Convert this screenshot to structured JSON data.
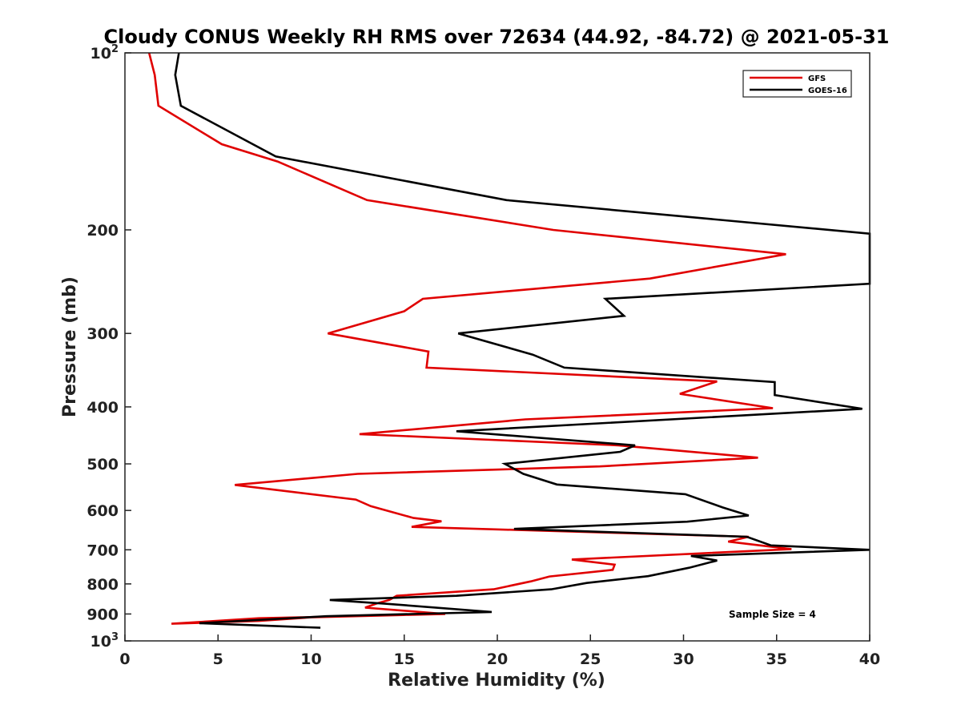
{
  "chart_data": {
    "type": "line",
    "title": "Cloudy CONUS Weekly RH RMS over 72634 (44.92, -84.72) @ 2021-05-31",
    "xlabel": "Relative Humidity (%)",
    "ylabel": "Pressure (mb)",
    "xlim": [
      0,
      40
    ],
    "ylim": [
      100,
      1000
    ],
    "y_scale": "log",
    "y_reversed": true,
    "grid": false,
    "legend_position": "top-right",
    "x_ticks": [
      "0",
      "5",
      "10",
      "15",
      "20",
      "25",
      "30",
      "35",
      "40"
    ],
    "y_ticks": [
      {
        "value": 100,
        "base": "10",
        "exp": "2",
        "label": ""
      },
      {
        "value": 200,
        "label": "200"
      },
      {
        "value": 300,
        "label": "300"
      },
      {
        "value": 400,
        "label": "400"
      },
      {
        "value": 500,
        "label": "500"
      },
      {
        "value": 600,
        "label": "600"
      },
      {
        "value": 700,
        "label": "700"
      },
      {
        "value": 800,
        "label": "800"
      },
      {
        "value": 900,
        "label": "900"
      },
      {
        "value": 1000,
        "base": "10",
        "exp": "3",
        "label": ""
      }
    ],
    "annotation": "Sample Size = 4",
    "series": [
      {
        "name": "GFS",
        "color": "#e00000",
        "points": [
          [
            1.3,
            100
          ],
          [
            1.6,
            109
          ],
          [
            1.8,
            123
          ],
          [
            5.2,
            143
          ],
          [
            8.2,
            153
          ],
          [
            13,
            178
          ],
          [
            23,
            200
          ],
          [
            35.5,
            220
          ],
          [
            28.2,
            242
          ],
          [
            16,
            262
          ],
          [
            15.0,
            275
          ],
          [
            10.9,
            300
          ],
          [
            16.3,
            322
          ],
          [
            16.2,
            343
          ],
          [
            31.8,
            362
          ],
          [
            29.8,
            380
          ],
          [
            34.8,
            402
          ],
          [
            21.5,
            420
          ],
          [
            12.6,
            445
          ],
          [
            26.5,
            465
          ],
          [
            34,
            488
          ],
          [
            25.5,
            505
          ],
          [
            12.5,
            520
          ],
          [
            5.9,
            543
          ],
          [
            12.4,
            575
          ],
          [
            13.2,
            590
          ],
          [
            15.5,
            618
          ],
          [
            17.0,
            626
          ],
          [
            15.4,
            640
          ],
          [
            33.5,
            665
          ],
          [
            32.4,
            678
          ],
          [
            35.8,
            698
          ],
          [
            24,
            727
          ],
          [
            26.3,
            742
          ],
          [
            26.2,
            757
          ],
          [
            22.8,
            777
          ],
          [
            21.8,
            792
          ],
          [
            19.8,
            817
          ],
          [
            14.6,
            838
          ],
          [
            14.2,
            852
          ],
          [
            13.6,
            862
          ],
          [
            12.9,
            878
          ],
          [
            17.2,
            900
          ],
          [
            7.2,
            915
          ],
          [
            2.5,
            935
          ],
          [
            7.2,
            925
          ],
          [
            10,
            912
          ],
          [
            17.2,
            900
          ]
        ]
      },
      {
        "name": "GOES-16",
        "color": "#000000",
        "points": [
          [
            2.9,
            100
          ],
          [
            2.7,
            109
          ],
          [
            3.0,
            123
          ],
          [
            8.1,
            150
          ],
          [
            20.5,
            178
          ],
          [
            40,
            203
          ],
          [
            40,
            247
          ],
          [
            25.8,
            262
          ],
          [
            26.8,
            280
          ],
          [
            17.9,
            300
          ],
          [
            21.9,
            326
          ],
          [
            23.6,
            343
          ],
          [
            34.9,
            363
          ],
          [
            34.9,
            382
          ],
          [
            39.6,
            403
          ],
          [
            17.8,
            440
          ],
          [
            27.4,
            465
          ],
          [
            26.6,
            477
          ],
          [
            20.4,
            500
          ],
          [
            21.4,
            520
          ],
          [
            23.2,
            542
          ],
          [
            30.1,
            563
          ],
          [
            32.1,
            593
          ],
          [
            33.5,
            612
          ],
          [
            30.2,
            627
          ],
          [
            20.9,
            645
          ],
          [
            33.4,
            665
          ],
          [
            34.7,
            688
          ],
          [
            40,
            700
          ],
          [
            30.4,
            717
          ],
          [
            31.8,
            730
          ],
          [
            30.3,
            751
          ],
          [
            28.1,
            776
          ],
          [
            24.8,
            797
          ],
          [
            22.9,
            817
          ],
          [
            17.8,
            838
          ],
          [
            11.0,
            852
          ],
          [
            13.9,
            864
          ],
          [
            19.7,
            893
          ],
          [
            10.8,
            908
          ],
          [
            4.0,
            933
          ],
          [
            10.5,
            950
          ]
        ]
      }
    ]
  }
}
